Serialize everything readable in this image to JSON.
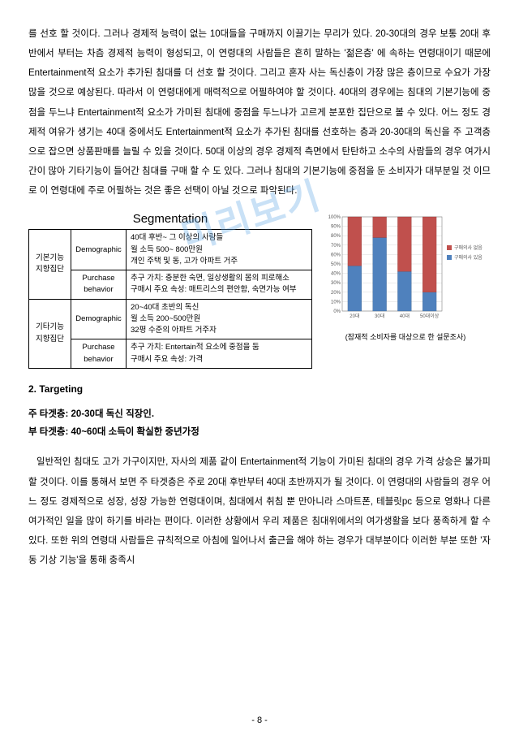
{
  "watermark": "미리보기",
  "para1": "를 선호 할 것이다. 그러나 경제적 능력이 없는 10대들을 구매까지 이끌기는 무리가 있다. 20-30대의 경우 보통 20대 후반에서 부터는 차츰 경제적 능력이 형성되고, 이 연령대의 사람들은 흔히 말하는 '젊은층' 에 속하는 연령대이기 때문에 Entertainment적 요소가 추가된 침대를 더 선호 할 것이다. 그리고 혼자 사는 독신층이 가장 많은 층이므로 수요가 가장 많을 것으로 예상된다. 따라서 이 연령대에게 매력적으로 어필하여야 할 것이다. 40대의 경우에는 침대의 기본기능에 중점을 두느냐 Entertainment적 요소가 가미된 침대에 중점을 두느냐가 고르게 분포한 집단으로 볼 수 있다. 어느 정도 경제적 여유가 생기는 40대 중에서도 Entertainment적 요소가 추가된 침대를 선호하는 층과 20-30대의 독신을 주 고객층으로 잡으면 상품판매를 늘릴 수 있을 것이다. 50대 이상의 경우 경제적 측면에서 탄탄하고 소수의 사람들의 경우 여가시간이 많아 기타기능이 들어간 침대를 구매 할 수 도 있다. 그러나 침대의 기본기능에 중점을 둔 소비자가 대부분일 것 이므로 이 연령대에 주로 어필하는 것은 좋은 선택이 아닐 것으로 파악된다.",
  "seg": {
    "title": "Segmentation",
    "rows": [
      {
        "group": "기본기능\n지향집단",
        "demo": "40대 후반~ 그 이상의 사람들\n월 소득 500~ 800만원\n개인 주택 및 동, 고가 아파트 거주",
        "purch": "추구 가치: 충분한 숙면, 일상생활의 몸의 피로해소\n구매시 주요 속성: 매트리스의 편안함, 숙면가능 여부"
      },
      {
        "group": "기타기능\n지향집단",
        "demo": "20~40대 초반의 독신\n월 소득 200~500만원\n32평 수준의 아파트 거주자",
        "purch": "추구 가치: Entertain적 요소에 중점을 둠\n구매시 주요 속성: 가격"
      }
    ],
    "colDemo": "Demographic",
    "colPurch": "Purchase\nbehavior"
  },
  "chart": {
    "categories": [
      "20대",
      "30대",
      "40대",
      "50대이상"
    ],
    "series": [
      {
        "name": "구매의사 없음",
        "color": "#c0504d",
        "values": [
          52,
          22,
          58,
          80
        ]
      },
      {
        "name": "구매의사 있음",
        "color": "#4f81bd",
        "values": [
          48,
          78,
          42,
          20
        ]
      }
    ],
    "ylim": [
      0,
      100
    ],
    "ytick_step": 10,
    "background": "#ffffff",
    "grid_color": "#d9d9d9",
    "caption": "(잠재적 소비자를 대상으로 한 설문조사)"
  },
  "section2_head": "2. Targeting",
  "target_main": "주 타겟층: 20-30대 독신 직장인.",
  "target_sub": "부 타겟층: 40~60대 소득이 확실한 중년가정",
  "para2": "일반적인 침대도 고가 가구이지만, 자사의 제품 같이 Entertainment적 기능이 가미된 침대의 경우 가격 상승은 불가피 할 것이다. 이를 통해서 보면 주 타겟층은 주로 20대 후반부터 40대 초반까지가 될 것이다. 이 연령대의 사람들의 경우 어느 정도 경제적으로 성장, 성장 가능한 연령대이며, 침대에서 취침 뿐 만아니라 스마트폰, 테블릿pc 등으로 영화나 다른 여가적인 일을 많이 하기를 바라는 편이다. 이러한 상황에서 우리 제품은 침대위에서의 여가생활을 보다 풍족하게 할 수 있다. 또한 위의 연령대 사람들은 규칙적으로 아침에 일어나서 출근을 해야 하는 경우가 대부분이다 이러한 부분 또한 '자동 기상 기능'을 통해 충족시",
  "pagenum": "- 8 -"
}
